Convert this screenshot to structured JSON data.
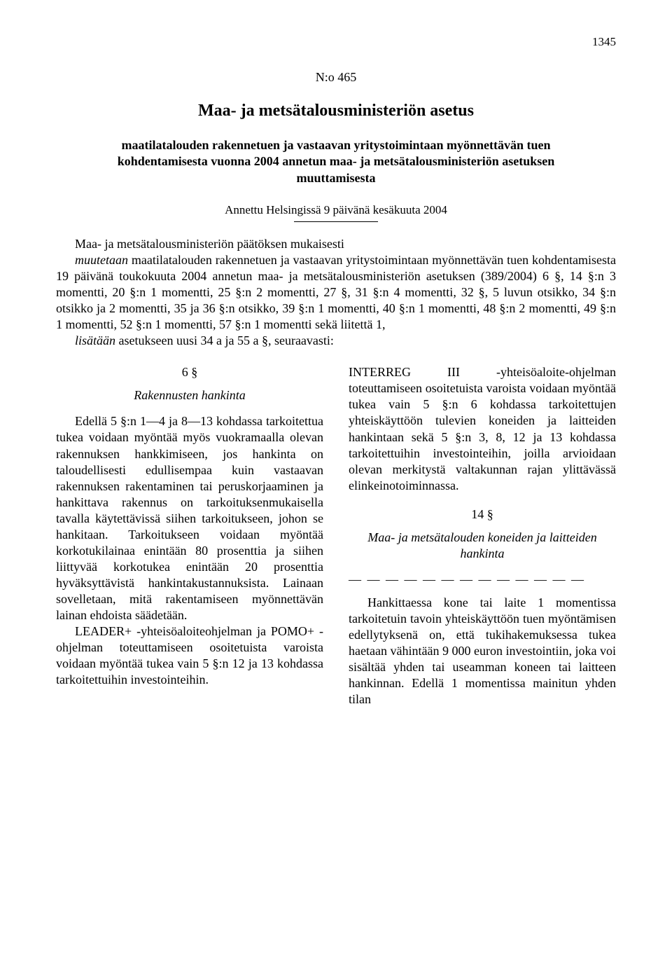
{
  "page_number": "1345",
  "doc_number": "N:o 465",
  "title": "Maa- ja metsätalousministeriön asetus",
  "subtitle": "maatilatalouden rakennetuen ja vastaavan yritystoimintaan myönnettävän tuen kohdentamisesta vuonna 2004 annetun maa- ja metsätalousministeriön asetuksen muuttamisesta",
  "given": "Annettu Helsingissä 9 päivänä kesäkuuta 2004",
  "preamble": {
    "p1": "Maa- ja metsätalousministeriön päätöksen mukaisesti",
    "p2_before_muutetaan": "",
    "muutetaan": "muutetaan",
    "p2_after": " maatilatalouden rakennetuen ja vastaavan yritystoimintaan myönnettävän tuen kohdentamisesta 19 päivänä toukokuuta 2004 annetun maa- ja metsätalousministeriön asetuksen (389/2004) 6 §, 14 §:n 3 momentti, 20 §:n 1 momentti, 25 §:n 2 momentti, 27 §, 31 §:n 4 momentti, 32 §, 5 luvun otsikko, 34 §:n otsikko ja 2 momentti, 35 ja 36 §:n otsikko, 39 §:n 1 momentti, 40 §:n 1 momentti, 48 §:n 2 momentti, 49 §:n 1 momentti, 52 §:n 1 momentti, 57 §:n 1 momentti sekä liitettä 1,",
    "lisataan": "lisätään",
    "p3_after": " asetukseen uusi 34 a ja 55 a §, seuraavasti:"
  },
  "left": {
    "sec6_num": "6 §",
    "sec6_title": "Rakennusten hankinta",
    "sec6_p1": "Edellä 5 §:n 1—4 ja 8—13 kohdassa tarkoitettua tukea voidaan myöntää myös vuokramaalla olevan rakennuksen hankkimiseen, jos hankinta on taloudellisesti edullisempaa kuin vastaavan rakennuksen rakentaminen tai peruskorjaaminen ja hankittava rakennus on tarkoituksenmukaisella tavalla käytettävissä siihen tarkoitukseen, johon se hankitaan. Tarkoitukseen voidaan myöntää korkotukilainaa enintään 80 prosenttia ja siihen liittyvää korkotukea enintään 20 prosenttia hyväksyttävistä hankintakustannuksista. Lainaan sovelletaan, mitä rakentamiseen myönnettävän lainan ehdoista säädetään.",
    "sec6_p2": "LEADER+ -yhteisöaloiteohjelman ja POMO+ -ohjelman toteuttamiseen osoitetuista varoista voidaan myöntää tukea vain 5 §:n 12 ja 13 kohdassa tarkoitettuihin investointeihin."
  },
  "right": {
    "top_para": "INTERREG III -yhteisöaloite-ohjelman toteuttamiseen osoitetuista varoista voidaan myöntää tukea vain 5 §:n 6 kohdassa tarkoitettujen yhteiskäyttöön tulevien koneiden ja laitteiden hankintaan sekä 5 §:n 3, 8, 12 ja 13 kohdassa tarkoitettuihin investointeihin, joilla arvioidaan olevan merkitystä valtakunnan rajan ylittävässä elinkeinotoiminnassa.",
    "sec14_num": "14 §",
    "sec14_title": "Maa- ja metsätalouden koneiden ja laitteiden hankinta",
    "dashes": "— — — — — — — — — — — — —",
    "sec14_p1": "Hankittaessa kone tai laite 1 momentissa tarkoitetuin tavoin yhteiskäyttöön tuen myöntämisen edellytyksenä on, että tukihakemuksessa tukea haetaan vähintään 9 000 euron investointiin, joka voi sisältää yhden tai useamman koneen tai laitteen hankinnan. Edellä 1 momentissa mainitun yhden tilan"
  }
}
